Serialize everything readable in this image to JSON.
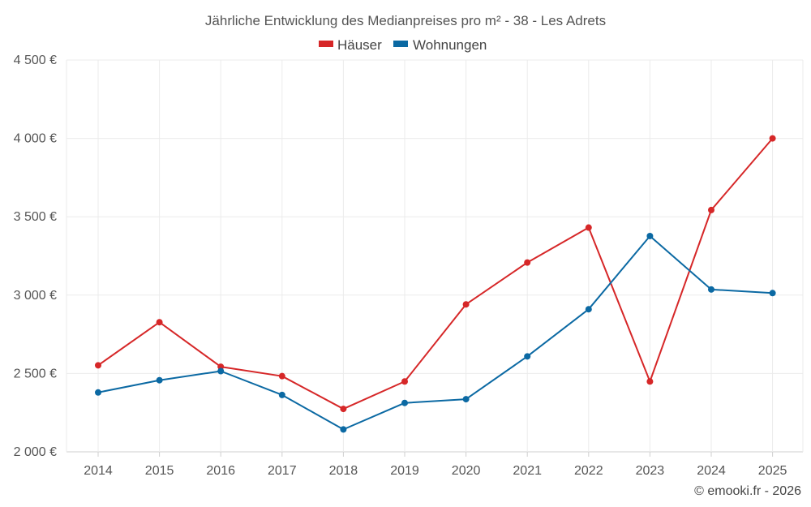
{
  "chart_data": {
    "type": "line",
    "title": "Jährliche Entwicklung des Medianpreises pro m² - 38 - Les Adrets",
    "categories": [
      "2014",
      "2015",
      "2016",
      "2017",
      "2018",
      "2019",
      "2020",
      "2021",
      "2022",
      "2023",
      "2024",
      "2025"
    ],
    "series": [
      {
        "name": "Häuser",
        "color": "#d62728",
        "values": [
          2552,
          2827,
          2543,
          2483,
          2274,
          2449,
          2941,
          3208,
          3431,
          2449,
          3543,
          4000
        ]
      },
      {
        "name": "Wohnungen",
        "color": "#0b69a3",
        "values": [
          2379,
          2457,
          2515,
          2363,
          2143,
          2312,
          2336,
          2609,
          2910,
          3377,
          3036,
          3013
        ]
      }
    ],
    "ylim": [
      2000,
      4500
    ],
    "yticks": [
      2000,
      2500,
      3000,
      3500,
      4000,
      4500
    ],
    "ytick_labels": [
      "2 000 €",
      "2 500 €",
      "3 000 €",
      "3 500 €",
      "4 000 €",
      "4 500 €"
    ],
    "xlabel": "",
    "ylabel": "",
    "grid": true,
    "legend_position": "top-center"
  },
  "credit": "© emooki.fr - 2026"
}
